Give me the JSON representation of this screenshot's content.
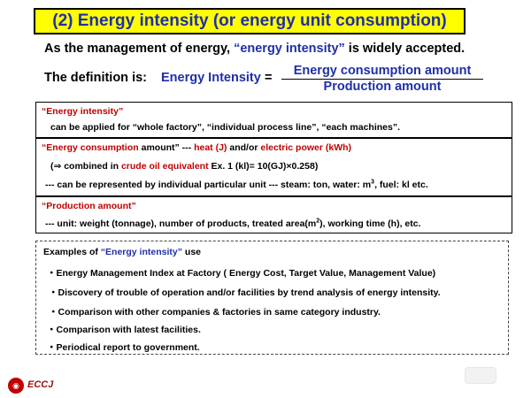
{
  "title": "(2) Energy intensity (or energy unit consumption)",
  "intro": {
    "part1": "As the management of energy, ",
    "term": "“energy intensity”",
    "part2": " is widely accepted."
  },
  "definition": {
    "label": "The definition is:",
    "term": "Energy Intensity",
    "equals": "=",
    "numerator": "Energy consumption amount",
    "denominator": "Production amount"
  },
  "box1": {
    "heading": "“Energy intensity”",
    "text": "can be applied for “whole factory”, “individual process line”, “each machines”."
  },
  "box2": {
    "heading": "“Energy consumption",
    "heading_rest": " amount” --- ",
    "heat": "heat (J)",
    "and_or": " and/or ",
    "electric": "electric power (kWh)",
    "line2_pre": "(⇒ combined in ",
    "line2_crude": "crude oil equivalent",
    "line2_rest": "  Ex. 1 (kl)= 10(GJ)×0.258)",
    "line3_pre": "---  can be represented by individual particular unit --- steam: ton, water: m",
    "line3_sup": "3",
    "line3_rest": ", fuel: kl etc."
  },
  "box3": {
    "heading": "“Production amount”",
    "text_pre": "--- unit: weight (tonnage), number of products, treated area(m",
    "text_sup": "2",
    "text_rest": "), working time (h), etc."
  },
  "examples": {
    "heading_pre": "Examples of ",
    "heading_term": "“Energy intensity”",
    "heading_post": " use",
    "items": [
      "・Energy Management Index at Factory ( Energy Cost, Target Value, Management Value)",
      "・Discovery of trouble of operation and/or facilities by trend analysis of energy intensity.",
      "・Comparison with other companies & factories in same category industry.",
      "・Comparison with latest facilities.",
      "・Periodical report to government."
    ]
  },
  "logo": {
    "text": "ECCJ"
  },
  "colors": {
    "title_bg": "#ffff00",
    "blue": "#1f2fa8",
    "red": "#c00000"
  }
}
